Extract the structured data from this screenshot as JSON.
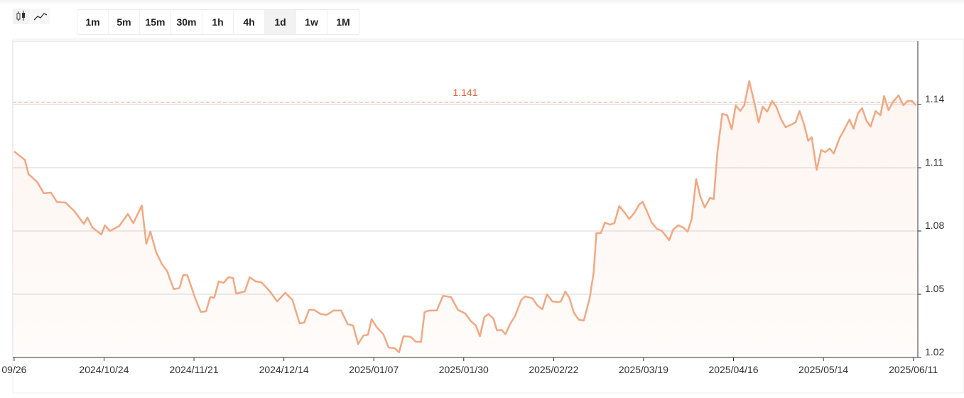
{
  "toolbar": {
    "intervals": [
      "1m",
      "5m",
      "15m",
      "30m",
      "1h",
      "4h",
      "1d",
      "1w",
      "1M"
    ],
    "active_index": 6
  },
  "chart_data": {
    "type": "line",
    "color": "#f2a882",
    "last_price": 1.141,
    "x": [
      0,
      2.4,
      3.2,
      5.1,
      6.6,
      8.2,
      9.5,
      11.4,
      13.4,
      15.5,
      16.3,
      17.4,
      19.4,
      20.2,
      21.3,
      23.4,
      25.3,
      26.5,
      28.4,
      29.4,
      30.3,
      31.6,
      32.9,
      34.0,
      35.5,
      36.8,
      37.6,
      38.5,
      40.3,
      41.5,
      42.7,
      43.6,
      44.5,
      45.5,
      46.6,
      47.7,
      48.7,
      49.4,
      51.3,
      52.4,
      53.7,
      55.0,
      56.9,
      58.5,
      60.3,
      61.9,
      63.5,
      64.5,
      65.6,
      66.7,
      68.2,
      69.5,
      71.1,
      72.7,
      74.2,
      75.4,
      76.5,
      77.7,
      78.7,
      79.5,
      80.6,
      82.1,
      83.3,
      84.7,
      85.6,
      86.6,
      88.2,
      89.4,
      90.5,
      91.3,
      92.4,
      94.0,
      95.4,
      97.2,
      98.7,
      100.3,
      101.6,
      102.7,
      103.6,
      104.6,
      105.5,
      106.6,
      107.4,
      108.4,
      109.3,
      110.3,
      111.4,
      112.8,
      113.7,
      115.3,
      116.4,
      117.5,
      118.5,
      119.7,
      120.9,
      121.6,
      122.6,
      123.5,
      124.5,
      125.6,
      126.7,
      128.0,
      128.9,
      129.5,
      130.5,
      131.4,
      132.5,
      133.5,
      134.6,
      135.9,
      136.8,
      137.9,
      139.0,
      139.8,
      140.6,
      141.8,
      143.0,
      144.1,
      145.7,
      146.6,
      147.7,
      148.8,
      149.8,
      150.7,
      151.7,
      152.6,
      153.6,
      154.8,
      155.6,
      156.4,
      157.5,
      158.6,
      159.6,
      160.5,
      161.5,
      162.4,
      163.5,
      164.6,
      165.6,
      166.5,
      167.5,
      168.6,
      169.5,
      170.6,
      171.6,
      173.0,
      173.8,
      174.7,
      175.7,
      176.6,
      177.4,
      178.5,
      179.5,
      180.4,
      181.4,
      182.3,
      183.6,
      184.5,
      185.8,
      186.7,
      187.7,
      188.6,
      189.6,
      190.5,
      191.6,
      192.7,
      193.5,
      194.5,
      195.5,
      196.7,
      197.8,
      198.7,
      199.7,
      200.6
    ],
    "values": [
      1.1177,
      1.1137,
      1.107,
      1.1033,
      1.0979,
      1.0982,
      1.0938,
      1.0935,
      1.0894,
      1.0834,
      1.0864,
      1.0817,
      1.0783,
      1.0827,
      1.08,
      1.0824,
      1.0881,
      1.0837,
      1.0921,
      1.0739,
      1.0797,
      1.0699,
      1.0642,
      1.0611,
      1.0524,
      1.053,
      1.0591,
      1.0591,
      1.048,
      1.0416,
      1.0419,
      1.0486,
      1.0483,
      1.0561,
      1.0554,
      1.0581,
      1.0577,
      1.0503,
      1.0513,
      1.0581,
      1.0561,
      1.0557,
      1.0513,
      1.0466,
      1.0507,
      1.0473,
      1.0362,
      1.0365,
      1.0426,
      1.0426,
      1.0406,
      1.0402,
      1.0423,
      1.0423,
      1.0358,
      1.0352,
      1.0264,
      1.0304,
      1.0308,
      1.0382,
      1.0345,
      1.0311,
      1.0247,
      1.0244,
      1.0224,
      1.0301,
      1.0298,
      1.0274,
      1.0274,
      1.0416,
      1.0423,
      1.0423,
      1.0493,
      1.0486,
      1.0426,
      1.0409,
      1.0372,
      1.0352,
      1.0301,
      1.0392,
      1.0406,
      1.0385,
      1.0328,
      1.0331,
      1.0311,
      1.0358,
      1.0396,
      1.0473,
      1.049,
      1.048,
      1.0446,
      1.0429,
      1.05,
      1.0466,
      1.0463,
      1.0466,
      1.0513,
      1.0483,
      1.0412,
      1.0379,
      1.0375,
      1.048,
      1.0604,
      1.079,
      1.079,
      1.084,
      1.083,
      1.0837,
      1.0918,
      1.0884,
      1.0857,
      1.0884,
      1.0925,
      1.0938,
      1.0901,
      1.084,
      1.081,
      1.08,
      1.0756,
      1.0807,
      1.0827,
      1.0817,
      1.0797,
      1.0857,
      1.1046,
      1.0965,
      1.0911,
      1.0958,
      1.0951,
      1.117,
      1.1356,
      1.1349,
      1.1282,
      1.1396,
      1.1369,
      1.1396,
      1.1511,
      1.1413,
      1.1315,
      1.139,
      1.1366,
      1.1417,
      1.139,
      1.1329,
      1.1292,
      1.1306,
      1.1315,
      1.1369,
      1.1306,
      1.1228,
      1.1245,
      1.109,
      1.1184,
      1.1174,
      1.1191,
      1.1167,
      1.1241,
      1.1275,
      1.1329,
      1.1285,
      1.1359,
      1.1383,
      1.1322,
      1.1295,
      1.1369,
      1.1349,
      1.144,
      1.1373,
      1.1413,
      1.1443,
      1.1396,
      1.1417,
      1.1417,
      1.1396
    ],
    "xlim": [
      -0.3,
      201
    ],
    "xticks": [
      {
        "value": 0,
        "label": "09/26"
      },
      {
        "value": 20,
        "label": "2024/10/24"
      },
      {
        "value": 40,
        "label": "2024/11/21"
      },
      {
        "value": 60,
        "label": "2024/12/14"
      },
      {
        "value": 80,
        "label": "2025/01/07"
      },
      {
        "value": 100,
        "label": "2025/01/30"
      },
      {
        "value": 120,
        "label": "2025/02/22"
      },
      {
        "value": 140,
        "label": "2025/03/19"
      },
      {
        "value": 160,
        "label": "2025/04/16"
      },
      {
        "value": 180,
        "label": "2025/05/14"
      },
      {
        "value": 200,
        "label": "2025/06/11"
      }
    ],
    "ylim": [
      1.02,
      1.17
    ],
    "yticks": [
      1.02,
      1.05,
      1.08,
      1.11,
      1.14
    ],
    "grid": true
  }
}
